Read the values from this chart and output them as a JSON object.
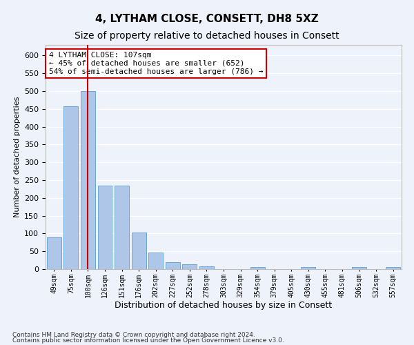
{
  "title": "4, LYTHAM CLOSE, CONSETT, DH8 5XZ",
  "subtitle": "Size of property relative to detached houses in Consett",
  "xlabel": "Distribution of detached houses by size in Consett",
  "ylabel": "Number of detached properties",
  "categories": [
    "49sqm",
    "75sqm",
    "100sqm",
    "126sqm",
    "151sqm",
    "176sqm",
    "202sqm",
    "227sqm",
    "252sqm",
    "278sqm",
    "303sqm",
    "329sqm",
    "354sqm",
    "379sqm",
    "405sqm",
    "430sqm",
    "455sqm",
    "481sqm",
    "506sqm",
    "532sqm",
    "557sqm"
  ],
  "values": [
    90,
    458,
    500,
    235,
    235,
    102,
    47,
    20,
    13,
    8,
    0,
    0,
    6,
    0,
    0,
    5,
    0,
    0,
    5,
    0,
    5
  ],
  "bar_color": "#aec6e8",
  "bar_edge_color": "#5a9fd4",
  "vline_x_index": 2,
  "vline_color": "#cc0000",
  "annotation_line1": "4 LYTHAM CLOSE: 107sqm",
  "annotation_line2": "← 45% of detached houses are smaller (652)",
  "annotation_line3": "54% of semi-detached houses are larger (786) →",
  "annotation_box_color": "#ffffff",
  "annotation_box_edge": "#cc0000",
  "ylim_max": 630,
  "yticks": [
    0,
    50,
    100,
    150,
    200,
    250,
    300,
    350,
    400,
    450,
    500,
    550,
    600
  ],
  "footer1": "Contains HM Land Registry data © Crown copyright and database right 2024.",
  "footer2": "Contains public sector information licensed under the Open Government Licence v3.0.",
  "bg_color": "#eef2fb",
  "grid_color": "#ffffff",
  "title_fontsize": 11,
  "subtitle_fontsize": 10,
  "ylabel_fontsize": 8,
  "xlabel_fontsize": 9,
  "tick_fontsize": 7,
  "ytick_fontsize": 8,
  "annotation_fontsize": 8
}
